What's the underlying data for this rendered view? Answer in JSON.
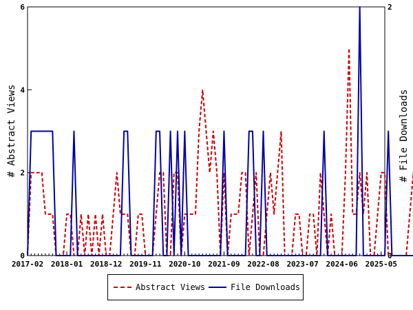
{
  "chart_data": {
    "type": "line",
    "xlabel": "",
    "ylabel_left": "# Abstract Views",
    "ylabel_right": "# File Downloads",
    "x_ticks": [
      "2017-02",
      "2018-01",
      "2018-12",
      "2019-11",
      "2020-10",
      "2021-09",
      "2022-08",
      "2023-07",
      "2024-06",
      "2025-05"
    ],
    "x_month_range": [
      "2017-02",
      "2025-06"
    ],
    "ylim_left": [
      0,
      6
    ],
    "ylim_right": [
      0,
      2
    ],
    "yticks_left": [
      "0",
      "2",
      "4",
      "6"
    ],
    "yticks_right": [
      "0",
      "2"
    ],
    "grid": false,
    "legend_placement": "bottom",
    "series": [
      {
        "name": "Abstract Views",
        "axis": "left",
        "color": "#cc0000",
        "style": "dashed",
        "values": [
          0,
          2,
          2,
          2,
          2,
          1,
          1,
          1,
          0,
          0,
          0,
          1,
          1,
          0,
          0,
          1,
          0,
          1,
          0,
          1,
          0,
          1,
          0,
          0,
          1,
          2,
          1,
          1,
          1,
          0,
          0,
          1,
          1,
          0,
          0,
          0,
          1,
          2,
          2,
          0,
          0,
          2,
          2,
          0,
          1,
          1,
          1,
          1,
          3,
          4,
          3,
          2,
          3,
          2,
          0,
          2,
          0,
          1,
          1,
          1,
          2,
          2,
          0,
          1,
          2,
          0,
          0,
          1,
          2,
          1,
          2,
          3,
          0,
          0,
          0,
          1,
          1,
          0,
          0,
          1,
          1,
          0,
          2,
          1,
          0,
          1,
          0,
          0,
          0,
          2,
          5,
          1,
          1,
          2,
          1,
          2,
          0,
          0,
          1,
          2,
          2,
          0,
          0,
          0,
          0,
          0,
          0,
          1,
          2,
          0,
          1,
          2,
          0,
          1,
          0,
          0,
          0,
          0,
          0,
          0,
          0,
          0,
          0,
          0,
          0,
          0,
          0,
          0,
          0,
          0,
          0,
          0,
          0,
          0,
          0,
          0,
          0,
          0,
          0,
          0,
          0,
          0,
          0,
          0,
          0,
          0,
          0,
          0,
          0,
          0,
          0,
          1
        ]
      },
      {
        "name": "File Downloads",
        "axis": "right",
        "color": "#0000aa",
        "style": "solid",
        "values": [
          0,
          1,
          1,
          1,
          1,
          1,
          1,
          1,
          0,
          0,
          0,
          0,
          0,
          1,
          0,
          0,
          0,
          0,
          0,
          0,
          0,
          0,
          0,
          0,
          0,
          0,
          0,
          1,
          1,
          0,
          0,
          0,
          0,
          0,
          0,
          0,
          1,
          1,
          0,
          0,
          1,
          0,
          1,
          0,
          1,
          0,
          0,
          0,
          0,
          0,
          0,
          0,
          0,
          0,
          0,
          1,
          0,
          0,
          0,
          0,
          0,
          0,
          1,
          1,
          0,
          0,
          1,
          0,
          0,
          0,
          0,
          0,
          0,
          0,
          0,
          0,
          0,
          0,
          0,
          0,
          0,
          0,
          0,
          1,
          0,
          0,
          0,
          0,
          0,
          0,
          0,
          0,
          0,
          2,
          0,
          0,
          0,
          0,
          0,
          0,
          0,
          1,
          0,
          0,
          0,
          0,
          0,
          0,
          0,
          0,
          0,
          0,
          0,
          2,
          0,
          0,
          0,
          0,
          0,
          0,
          0,
          0,
          0,
          0,
          0,
          0,
          0,
          0,
          0,
          0,
          0,
          0,
          0,
          0,
          0,
          0,
          0,
          0,
          0,
          0,
          0,
          0,
          0,
          0,
          0,
          0,
          0,
          0,
          0,
          0,
          0,
          0
        ]
      }
    ]
  },
  "legend": {
    "abstract_label": "Abstract Views",
    "download_label": "File Downloads"
  }
}
